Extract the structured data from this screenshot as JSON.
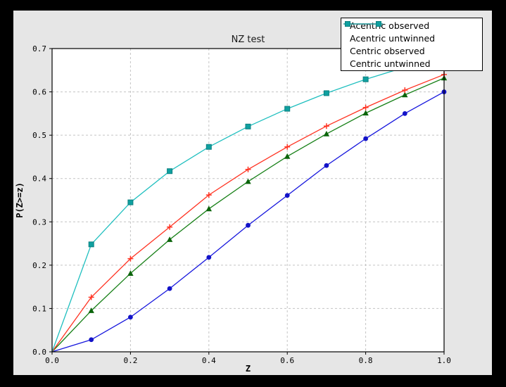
{
  "figure": {
    "outer_background": "#000000",
    "canvas_background": "#e6e6e6",
    "plot_background": "#ffffff",
    "grid_color": "#c4c4c4",
    "frame_color": "#000000"
  },
  "chart_data": {
    "type": "line",
    "title": "NZ test",
    "xlabel": "Z",
    "ylabel": "P(Z>=z)",
    "xlim": [
      0.0,
      1.0
    ],
    "ylim": [
      0.0,
      0.7
    ],
    "xticks": [
      "0.0",
      "0.2",
      "0.4",
      "0.6",
      "0.8",
      "1.0"
    ],
    "yticks": [
      "0.0",
      "0.1",
      "0.2",
      "0.3",
      "0.4",
      "0.5",
      "0.6",
      "0.7"
    ],
    "grid": true,
    "legend_position": "upper-right",
    "x": [
      0.0,
      0.1,
      0.2,
      0.3,
      0.4,
      0.5,
      0.6,
      0.7,
      0.8,
      0.9,
      1.0
    ],
    "series": [
      {
        "name": "Acentric observed",
        "color": "#1616dd",
        "marker": "circle",
        "marker_color": "#1313c8",
        "legend_marker_count": 0,
        "values": [
          0.0,
          0.028,
          0.08,
          0.146,
          0.218,
          0.292,
          0.361,
          0.43,
          0.492,
          0.55,
          0.6
        ]
      },
      {
        "name": "Acentric untwinned",
        "color": "#178017",
        "marker": "triangle",
        "marker_color": "#0b640b",
        "legend_marker_count": 0,
        "values": [
          0.0,
          0.095,
          0.181,
          0.259,
          0.33,
          0.393,
          0.451,
          0.503,
          0.551,
          0.593,
          0.632
        ]
      },
      {
        "name": "Centric observed",
        "color": "#ff3322",
        "marker": "plus",
        "marker_color": "#ff3322",
        "legend_marker_count": 2,
        "values": [
          0.0,
          0.126,
          0.215,
          0.288,
          0.362,
          0.421,
          0.473,
          0.521,
          0.564,
          0.604,
          0.64
        ]
      },
      {
        "name": "Centric untwinned",
        "color": "#1fbfbf",
        "marker": "square",
        "marker_color": "#0fa0a0",
        "legend_marker_count": 2,
        "values": [
          0.0,
          0.248,
          0.345,
          0.417,
          0.473,
          0.52,
          0.561,
          0.597,
          0.629,
          0.657,
          0.683
        ]
      }
    ]
  }
}
